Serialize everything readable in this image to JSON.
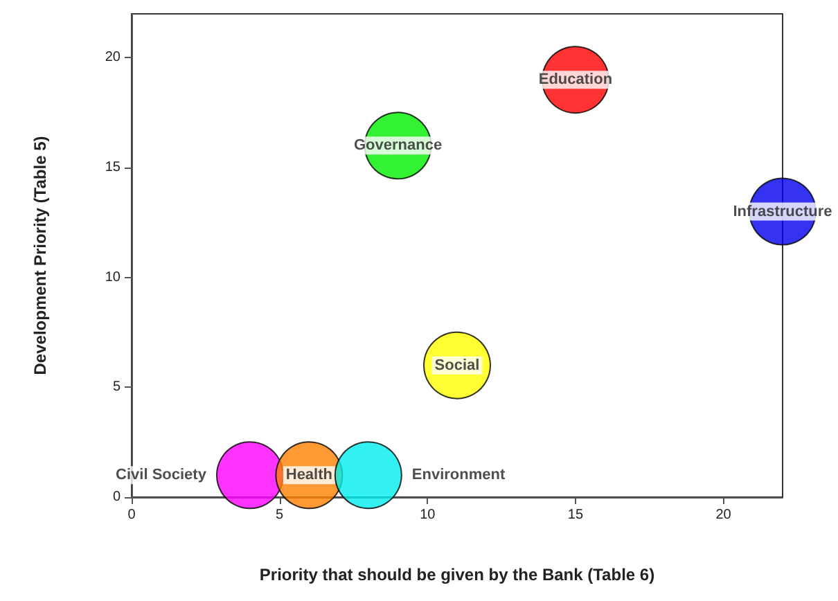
{
  "chart_data": {
    "type": "scatter",
    "xlabel": "Priority that should be given by the Bank (Table 6)",
    "ylabel": "Development Priority (Table 5)",
    "xlim": [
      0,
      22
    ],
    "xticks": [
      0,
      5,
      10,
      15,
      20
    ],
    "ylim": [
      0,
      22
    ],
    "yticks": [
      0,
      5,
      10,
      15,
      20
    ],
    "grid": false,
    "legend": false,
    "marker": "circle",
    "series": [
      {
        "name": "Education",
        "color": "#ff0000",
        "x": [
          15
        ],
        "values": [
          19
        ]
      },
      {
        "name": "Governance",
        "color": "#00ee00",
        "x": [
          9
        ],
        "values": [
          16
        ]
      },
      {
        "name": "Infrastructure",
        "color": "#0000ee",
        "x": [
          22
        ],
        "values": [
          13
        ]
      },
      {
        "name": "Social",
        "color": "#ffff00",
        "x": [
          11
        ],
        "values": [
          6
        ]
      },
      {
        "name": "Civil Society",
        "color": "#ff00ff",
        "x": [
          4
        ],
        "values": [
          1
        ]
      },
      {
        "name": "Health",
        "color": "#ff8000",
        "x": [
          6
        ],
        "values": [
          1
        ]
      },
      {
        "name": "Environment",
        "color": "#00eeee",
        "x": [
          8
        ],
        "values": [
          1
        ]
      }
    ]
  }
}
